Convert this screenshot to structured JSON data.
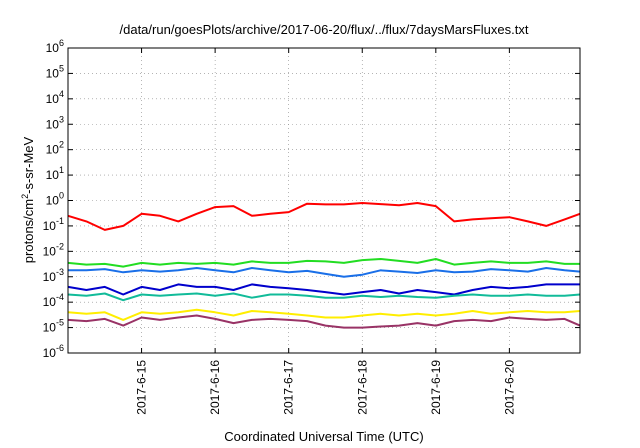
{
  "chart_data": {
    "type": "line",
    "title": "/data/run/goesPlots/archive/2017-06-20/flux/../flux/7daysMarsFluxes.txt",
    "xlabel": "Coordinated Universal Time (UTC)",
    "ylabel": "protons/cm²-s-sr-MeV",
    "yscale": "log",
    "ylim": [
      1e-06,
      1000000.0
    ],
    "xlim": [
      14.0,
      20.96
    ],
    "grid": true,
    "legend": "none",
    "y_ticks": [
      {
        "exp": "-6",
        "value": 1e-06
      },
      {
        "exp": "-5",
        "value": 1e-05
      },
      {
        "exp": "-4",
        "value": 0.0001
      },
      {
        "exp": "-3",
        "value": 0.001
      },
      {
        "exp": "-2",
        "value": 0.01
      },
      {
        "exp": "-1",
        "value": 0.1
      },
      {
        "exp": "0",
        "value": 1
      },
      {
        "exp": "1",
        "value": 10
      },
      {
        "exp": "2",
        "value": 100
      },
      {
        "exp": "3",
        "value": 1000
      },
      {
        "exp": "4",
        "value": 10000
      },
      {
        "exp": "5",
        "value": 100000
      },
      {
        "exp": "6",
        "value": 1000000
      }
    ],
    "x_ticks": [
      {
        "label": "2017-6-15",
        "value": 15
      },
      {
        "label": "2017-6-16",
        "value": 16
      },
      {
        "label": "2017-6-17",
        "value": 17
      },
      {
        "label": "2017-6-18",
        "value": 18
      },
      {
        "label": "2017-6-19",
        "value": 19
      },
      {
        "label": "2017-6-20",
        "value": 20
      }
    ],
    "x": [
      14.0,
      14.25,
      14.5,
      14.75,
      15.0,
      15.25,
      15.5,
      15.75,
      16.0,
      16.25,
      16.5,
      16.75,
      17.0,
      17.25,
      17.5,
      17.75,
      18.0,
      18.25,
      18.5,
      18.75,
      19.0,
      19.25,
      19.5,
      19.75,
      20.0,
      20.25,
      20.5,
      20.75,
      20.96
    ],
    "series": [
      {
        "color": "#ff0000",
        "values": [
          0.25,
          0.15,
          0.07,
          0.1,
          0.3,
          0.25,
          0.15,
          0.3,
          0.55,
          0.6,
          0.25,
          0.3,
          0.35,
          0.75,
          0.7,
          0.7,
          0.8,
          0.72,
          0.65,
          0.8,
          0.6,
          0.15,
          0.18,
          0.2,
          0.22,
          0.15,
          0.1,
          0.18,
          0.3
        ]
      },
      {
        "color": "#22dd22",
        "values": [
          0.0035,
          0.003,
          0.0032,
          0.0025,
          0.0035,
          0.003,
          0.0035,
          0.0032,
          0.0035,
          0.003,
          0.004,
          0.0035,
          0.0035,
          0.0042,
          0.004,
          0.0035,
          0.0045,
          0.005,
          0.0042,
          0.0035,
          0.005,
          0.003,
          0.0035,
          0.004,
          0.0035,
          0.0035,
          0.004,
          0.0032,
          0.0032
        ]
      },
      {
        "color": "#1a6fe8",
        "values": [
          0.0018,
          0.0018,
          0.002,
          0.0015,
          0.0018,
          0.0016,
          0.0018,
          0.0022,
          0.0018,
          0.0015,
          0.0022,
          0.0018,
          0.0015,
          0.0017,
          0.0013,
          0.001,
          0.0012,
          0.0018,
          0.0016,
          0.0014,
          0.0018,
          0.0015,
          0.0016,
          0.002,
          0.0018,
          0.0016,
          0.0022,
          0.0018,
          0.0016
        ]
      },
      {
        "color": "#0000cc",
        "values": [
          0.0004,
          0.0003,
          0.0004,
          0.0002,
          0.0004,
          0.0003,
          0.0005,
          0.0004,
          0.0004,
          0.0003,
          0.0005,
          0.0004,
          0.00035,
          0.0003,
          0.00025,
          0.0002,
          0.00025,
          0.0003,
          0.00022,
          0.0003,
          0.00025,
          0.0002,
          0.0003,
          0.0004,
          0.00035,
          0.0004,
          0.0005,
          0.0005,
          0.0005
        ]
      },
      {
        "color": "#11bb99",
        "values": [
          0.0002,
          0.00018,
          0.00022,
          0.00012,
          0.0002,
          0.00018,
          0.0002,
          0.00022,
          0.00018,
          0.00022,
          0.00015,
          0.0002,
          0.0002,
          0.00018,
          0.00015,
          0.00015,
          0.00018,
          0.00016,
          0.00018,
          0.00016,
          0.00015,
          0.00018,
          0.0002,
          0.00018,
          0.00018,
          0.0002,
          0.00018,
          0.00018,
          0.0002
        ]
      },
      {
        "color": "#ffee00",
        "values": [
          4e-05,
          3.5e-05,
          4e-05,
          2e-05,
          4e-05,
          3.5e-05,
          4e-05,
          5e-05,
          4e-05,
          3e-05,
          4.5e-05,
          4e-05,
          3.5e-05,
          3e-05,
          2.5e-05,
          2.5e-05,
          3e-05,
          3.5e-05,
          3e-05,
          3.5e-05,
          3e-05,
          3.5e-05,
          4.5e-05,
          3.5e-05,
          4e-05,
          4.5e-05,
          4e-05,
          4e-05,
          4.5e-05
        ]
      },
      {
        "color": "#993366",
        "values": [
          2e-05,
          1.8e-05,
          2.2e-05,
          1.2e-05,
          2.5e-05,
          2e-05,
          2.5e-05,
          3e-05,
          2.2e-05,
          1.5e-05,
          2e-05,
          2.2e-05,
          2e-05,
          1.8e-05,
          1.2e-05,
          1e-05,
          1e-05,
          1.1e-05,
          1.2e-05,
          1.5e-05,
          1.2e-05,
          1.8e-05,
          2e-05,
          1.8e-05,
          2.5e-05,
          2.2e-05,
          2e-05,
          2.2e-05,
          1.2e-05
        ]
      }
    ]
  }
}
